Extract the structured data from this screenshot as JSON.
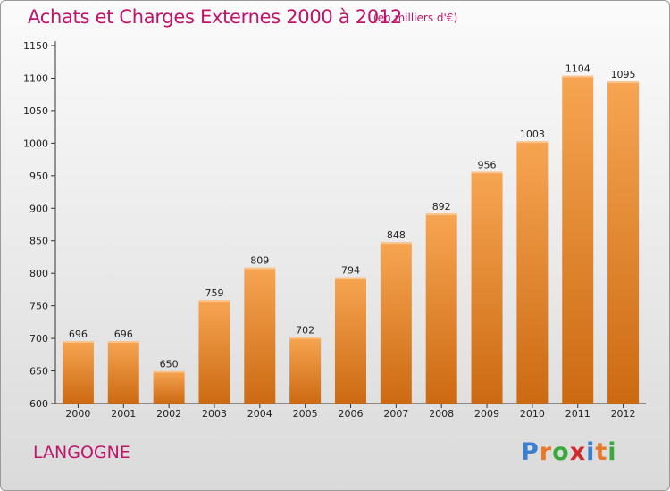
{
  "header": {
    "title": "Achats et Charges Externes 2000 à 2012",
    "subtitle": "(en milliers d'€)"
  },
  "footer": {
    "town": "LANGOGNE",
    "logo": [
      "P",
      "r",
      "o",
      "x",
      "i",
      "t",
      "i"
    ],
    "logo_colors": [
      "#3a7fd0",
      "#e8782a",
      "#3aa83a",
      "#d02a2a",
      "#3a7fd0",
      "#e8782a",
      "#3aa83a"
    ]
  },
  "colors": {
    "bar_light": "#f7a552",
    "bar_dark": "#cc6a12",
    "accent": "#c0146a"
  },
  "chart_data": {
    "type": "bar",
    "categories": [
      "2000",
      "2001",
      "2002",
      "2003",
      "2004",
      "2005",
      "2006",
      "2007",
      "2008",
      "2009",
      "2010",
      "2011",
      "2012"
    ],
    "values": [
      696,
      696,
      650,
      759,
      809,
      702,
      794,
      848,
      892,
      956,
      1003,
      1104,
      1095
    ],
    "ylim": [
      600,
      1150
    ],
    "yticks": [
      600,
      650,
      700,
      750,
      800,
      850,
      900,
      950,
      1000,
      1050,
      1100,
      1150
    ],
    "grid": false,
    "legend": "none"
  }
}
